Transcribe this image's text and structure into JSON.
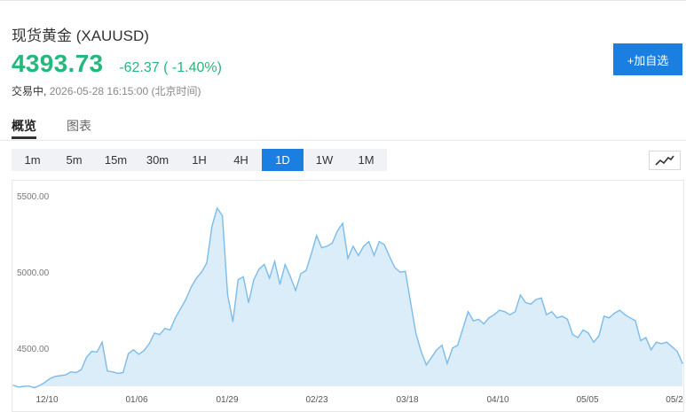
{
  "header": {
    "title": "现货黄金 (XAUUSD)",
    "price": "4393.73",
    "change": "-62.37 ( -1.40%)",
    "status_state": "交易中,",
    "status_time": "2026-05-28 16:15:00 (北京时间)",
    "add_button_label": "+加自选"
  },
  "tabs": [
    {
      "label": "概览",
      "active": true
    },
    {
      "label": "图表",
      "active": false
    }
  ],
  "ranges": [
    {
      "label": "1m",
      "active": false
    },
    {
      "label": "5m",
      "active": false
    },
    {
      "label": "15m",
      "active": false
    },
    {
      "label": "30m",
      "active": false
    },
    {
      "label": "1H",
      "active": false
    },
    {
      "label": "4H",
      "active": false
    },
    {
      "label": "1D",
      "active": true
    },
    {
      "label": "1W",
      "active": false
    },
    {
      "label": "1M",
      "active": false
    }
  ],
  "chart_type_icon": "line-chart-icon",
  "colors": {
    "price_up_down": "#25b77b",
    "accent": "#1a7fe0",
    "line": "#7bbcea",
    "fill": "#dcedfa"
  },
  "chart_data": {
    "type": "area",
    "ylim": [
      4250,
      5600
    ],
    "y_ticks": [
      4500,
      5000,
      5500
    ],
    "y_tick_labels": [
      "4500.00",
      "5000.00",
      "5500.00"
    ],
    "x_ticks": [
      "12/10",
      "01/06",
      "01/29",
      "02/23",
      "03/18",
      "04/10",
      "05/05",
      "05/2"
    ],
    "grid": false,
    "series": [
      {
        "values": [
          4257,
          4245,
          4250,
          4252,
          4240,
          4255,
          4275,
          4300,
          4315,
          4320,
          4325,
          4345,
          4340,
          4360,
          4440,
          4480,
          4475,
          4540,
          4350,
          4345,
          4335,
          4340,
          4465,
          4490,
          4460,
          4485,
          4530,
          4600,
          4590,
          4630,
          4620,
          4700,
          4760,
          4820,
          4900,
          4960,
          5000,
          5060,
          5300,
          5420,
          5370,
          4850,
          4675,
          4950,
          4970,
          4800,
          4950,
          5020,
          5050,
          4960,
          5070,
          4920,
          5050,
          4970,
          4880,
          4990,
          5010,
          5120,
          5240,
          5160,
          5170,
          5190,
          5270,
          5320,
          5090,
          5170,
          5110,
          5170,
          5200,
          5110,
          5200,
          5180,
          5100,
          5030,
          5000,
          5005,
          4800,
          4600,
          4480,
          4390,
          4440,
          4490,
          4520,
          4400,
          4500,
          4520,
          4630,
          4740,
          4680,
          4690,
          4660,
          4700,
          4720,
          4750,
          4740,
          4720,
          4740,
          4850,
          4800,
          4790,
          4820,
          4830,
          4720,
          4740,
          4700,
          4710,
          4690,
          4590,
          4570,
          4620,
          4600,
          4540,
          4580,
          4710,
          4700,
          4730,
          4750,
          4720,
          4700,
          4680,
          4550,
          4570,
          4490,
          4540,
          4530,
          4540,
          4510,
          4480,
          4400
        ]
      }
    ]
  }
}
